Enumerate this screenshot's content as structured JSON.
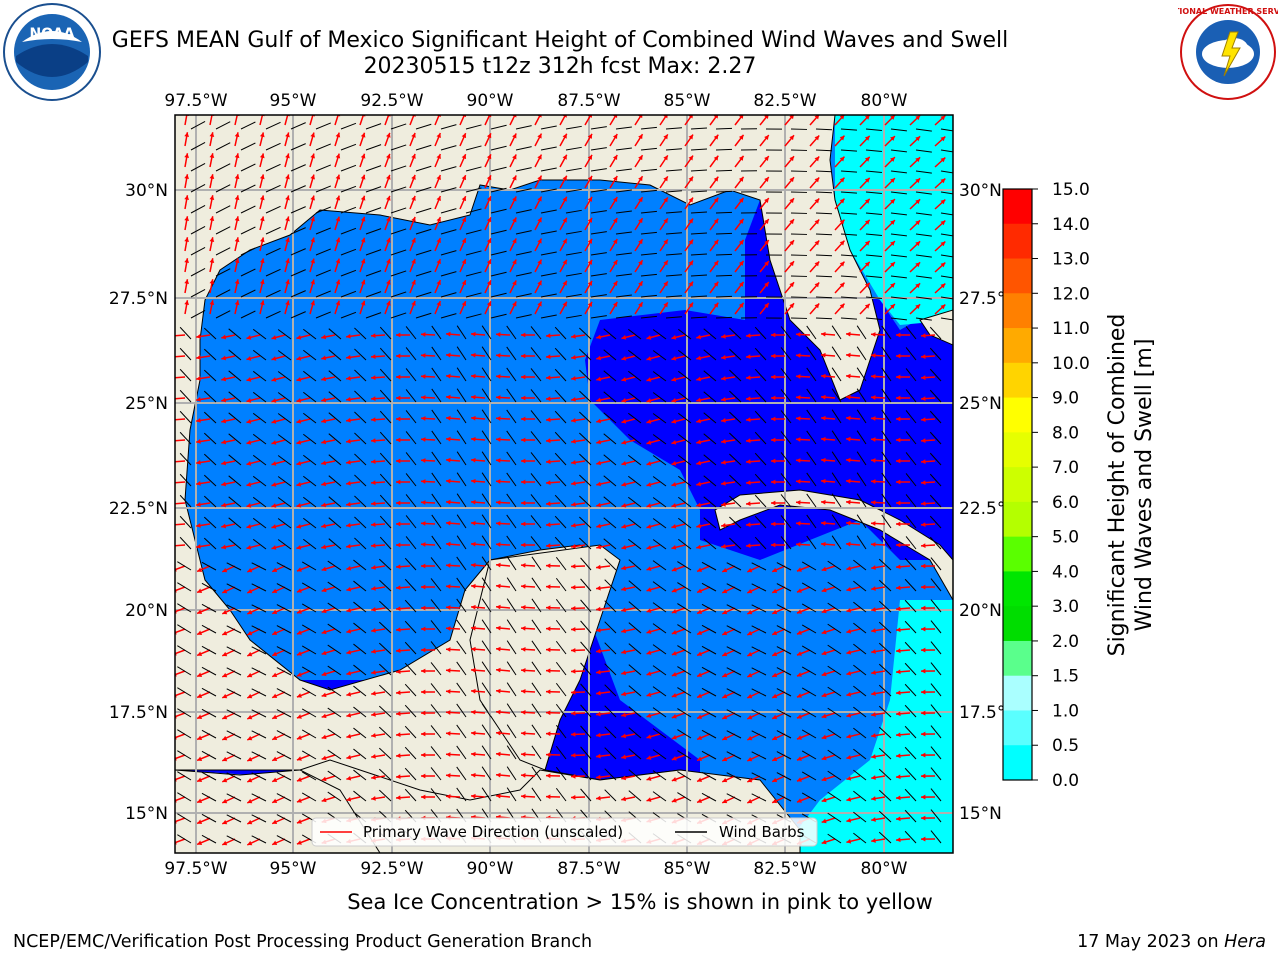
{
  "title": {
    "line1": "GEFS MEAN Gulf of Mexico Significant Height of Combined Wind Waves and Swell",
    "line2": "20230515 t12z 312h fcst   Max: 2.27"
  },
  "logos": {
    "noaa": {
      "icon": "noaa-logo",
      "text": "NOAA"
    },
    "nws": {
      "icon": "nws-logo",
      "text": "NATIONAL WEATHER SERVICE"
    }
  },
  "axes": {
    "lon_labels": [
      "97.5°W",
      "95°W",
      "92.5°W",
      "90°W",
      "87.5°W",
      "85°W",
      "82.5°W",
      "80°W"
    ],
    "lat_labels": [
      "30°N",
      "27.5°N",
      "25°N",
      "22.5°N",
      "20°N",
      "17.5°N",
      "15°N"
    ]
  },
  "colorbar": {
    "label_line1": "Significant Height of Combined",
    "label_line2": "Wind Waves and Swell [m]",
    "ticks": [
      "15.0",
      "14.0",
      "13.0",
      "12.0",
      "11.0",
      "10.0",
      "9.0",
      "8.0",
      "7.0",
      "6.0",
      "5.0",
      "4.0",
      "3.0",
      "2.0",
      "1.5",
      "1.0",
      "0.5",
      "0.0"
    ],
    "colors": [
      "#ff0000",
      "#ff2a00",
      "#ff5500",
      "#ff8000",
      "#ffaa00",
      "#ffd400",
      "#ffff00",
      "#e6ff00",
      "#cdff00",
      "#b4ff00",
      "#5aff00",
      "#00e600",
      "#00dd00",
      "#5aff8c",
      "#aaffff",
      "#5affff",
      "#00ffff",
      "#0080ff",
      "#0000ff"
    ]
  },
  "legend": {
    "wave_dir": "Primary Wave Direction (unscaled)",
    "wind_barbs": "Wind Barbs"
  },
  "ice_note": "Sea Ice Concentration > 15% is shown in pink to yellow",
  "footer": {
    "left": "NCEP/EMC/Verification Post Processing Product Generation Branch",
    "right_prefix": "17 May 2023 on ",
    "right_host": "Hera"
  },
  "colors": {
    "land": "#efedde",
    "ocean_low": "#0000ff",
    "ocean_mid": "#0080ff",
    "ocean_high": "#00ffff",
    "ocean_swell": "#aaffff",
    "arrow": "#ff0000",
    "barb": "#000000",
    "grid": "#b0b0b0"
  }
}
